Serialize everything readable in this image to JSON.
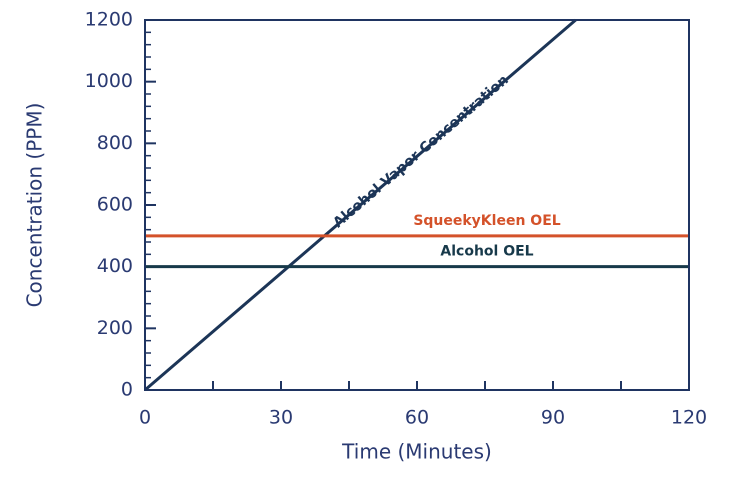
{
  "chart_data": {
    "type": "line",
    "x_label": "Time (Minutes)",
    "y_label": "Concentration (PPM)",
    "xlim": [
      0,
      120
    ],
    "xticks": [
      0,
      30,
      60,
      90,
      120
    ],
    "xminorticks": [
      15,
      45,
      75,
      105
    ],
    "ylim": [
      0,
      1200
    ],
    "yticks": [
      0,
      200,
      400,
      600,
      800,
      1000,
      1200
    ],
    "yminorticks": [
      40,
      80,
      120,
      160,
      240,
      280,
      320,
      360,
      440,
      480,
      520,
      560,
      640,
      680,
      720,
      760,
      840,
      880,
      920,
      960,
      1040,
      1080,
      1120,
      1160
    ],
    "series": [
      {
        "name": "Alcohol Vapor Concentration",
        "color": "#1c3557",
        "x": [
          0,
          95
        ],
        "values": [
          0,
          1200
        ]
      },
      {
        "name": "SqueekyKleen OEL",
        "color": "#d4522a",
        "x": [
          0,
          120
        ],
        "values": [
          500,
          500
        ]
      },
      {
        "name": "Alcohol OEL",
        "color": "#17394a",
        "x": [
          0,
          120
        ],
        "values": [
          400,
          400
        ]
      }
    ]
  }
}
